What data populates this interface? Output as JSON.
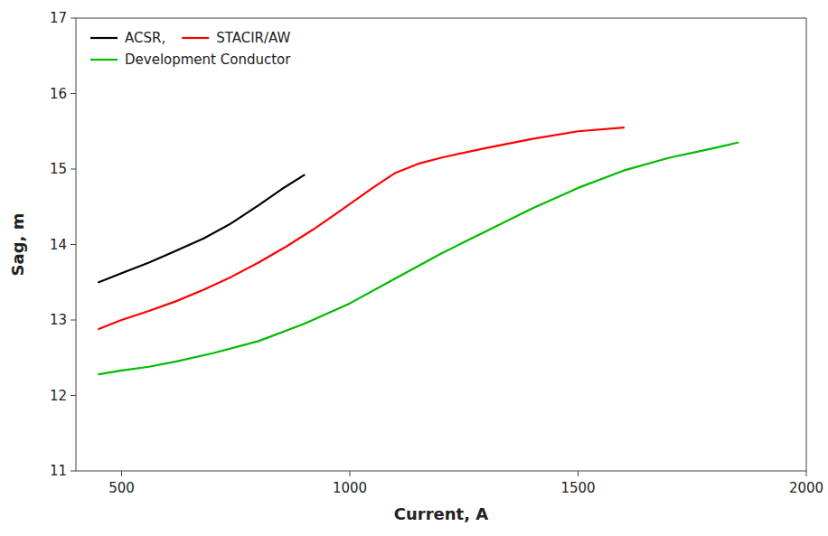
{
  "chart_data": {
    "type": "line",
    "xlabel": "Current, A",
    "ylabel": "Sag, m",
    "series": [
      {
        "name": "ACSR,",
        "color": "#000000",
        "x": [
          450,
          500,
          560,
          620,
          680,
          740,
          800,
          850,
          900
        ],
        "values": [
          13.5,
          13.62,
          13.76,
          13.92,
          14.08,
          14.28,
          14.52,
          14.73,
          14.92
        ]
      },
      {
        "name": "STACIR/AW",
        "color": "#ff0000",
        "x": [
          450,
          500,
          560,
          620,
          680,
          740,
          800,
          860,
          920,
          980,
          1050,
          1100,
          1150,
          1200,
          1300,
          1400,
          1500,
          1600
        ],
        "values": [
          12.88,
          13.0,
          13.12,
          13.25,
          13.4,
          13.57,
          13.76,
          13.97,
          14.2,
          14.45,
          14.75,
          14.95,
          15.07,
          15.15,
          15.28,
          15.4,
          15.5,
          15.55
        ]
      },
      {
        "name": "Development Conductor",
        "color": "#00bb00",
        "x": [
          450,
          500,
          560,
          620,
          700,
          800,
          900,
          1000,
          1100,
          1200,
          1300,
          1400,
          1500,
          1600,
          1700,
          1800,
          1850
        ],
        "values": [
          12.28,
          12.33,
          12.38,
          12.45,
          12.56,
          12.72,
          12.95,
          13.22,
          13.55,
          13.88,
          14.18,
          14.48,
          14.75,
          14.98,
          15.15,
          15.28,
          15.35
        ]
      }
    ],
    "xlim": [
      400,
      2000
    ],
    "ylim": [
      11,
      17
    ],
    "xticks": [
      500,
      1000,
      1500,
      2000
    ],
    "yticks": [
      11,
      12,
      13,
      14,
      15,
      16,
      17
    ],
    "grid": false,
    "legend": "upper left"
  }
}
